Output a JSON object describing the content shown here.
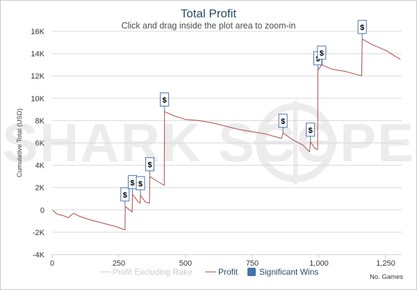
{
  "chart_data": {
    "type": "line",
    "title": "Total Profit",
    "subtitle": "Click and drag inside the plot area to zoom-in",
    "ylabel": "Cumulative Total (USD)",
    "xlabel": "No. Games",
    "xlim": [
      0,
      1310
    ],
    "ylim": [
      -4000,
      16000
    ],
    "x_ticks": [
      0,
      250,
      500,
      750,
      1000,
      1250
    ],
    "x_tick_labels": [
      "0",
      "250",
      "500",
      "750",
      "1,000",
      "1,250"
    ],
    "y_ticks": [
      -4000,
      -2000,
      0,
      2000,
      4000,
      6000,
      8000,
      10000,
      12000,
      14000,
      16000
    ],
    "y_tick_labels": [
      "-4K",
      "-2K",
      "0",
      "2K",
      "4K",
      "6K",
      "8K",
      "10K",
      "12K",
      "14K",
      "16K"
    ],
    "watermark": "SHARK SCOPE",
    "series": [
      {
        "name": "Profit Excluding Rake",
        "color": "#cccccc",
        "visible": false,
        "points": []
      },
      {
        "name": "Profit",
        "color": "#aa4643",
        "points": [
          [
            0,
            0
          ],
          [
            20,
            -400
          ],
          [
            40,
            -500
          ],
          [
            60,
            -700
          ],
          [
            80,
            -300
          ],
          [
            100,
            -550
          ],
          [
            130,
            -800
          ],
          [
            160,
            -1000
          ],
          [
            200,
            -1250
          ],
          [
            240,
            -1500
          ],
          [
            273,
            -1800
          ],
          [
            274,
            300
          ],
          [
            290,
            0
          ],
          [
            300,
            -200
          ],
          [
            301,
            1400
          ],
          [
            320,
            800
          ],
          [
            330,
            600
          ],
          [
            331,
            1300
          ],
          [
            350,
            700
          ],
          [
            365,
            600
          ],
          [
            366,
            3000
          ],
          [
            385,
            2700
          ],
          [
            420,
            2200
          ],
          [
            421,
            8800
          ],
          [
            460,
            8400
          ],
          [
            500,
            8100
          ],
          [
            550,
            8000
          ],
          [
            600,
            7800
          ],
          [
            650,
            7500
          ],
          [
            700,
            7200
          ],
          [
            750,
            7000
          ],
          [
            800,
            6800
          ],
          [
            860,
            6400
          ],
          [
            865,
            6900
          ],
          [
            900,
            6300
          ],
          [
            940,
            5800
          ],
          [
            965,
            5200
          ],
          [
            968,
            6100
          ],
          [
            985,
            5500
          ],
          [
            995,
            5400
          ],
          [
            996,
            12500
          ],
          [
            1010,
            13000
          ],
          [
            1050,
            12600
          ],
          [
            1100,
            12400
          ],
          [
            1160,
            12000
          ],
          [
            1162,
            15300
          ],
          [
            1200,
            14800
          ],
          [
            1250,
            14300
          ],
          [
            1290,
            13700
          ],
          [
            1305,
            13500
          ]
        ]
      },
      {
        "name": "Significant Wins",
        "color": "#4572a7",
        "type": "flags",
        "points": [
          [
            273,
            300
          ],
          [
            301,
            1400
          ],
          [
            331,
            1300
          ],
          [
            366,
            3000
          ],
          [
            421,
            8800
          ],
          [
            865,
            6900
          ],
          [
            968,
            6100
          ],
          [
            996,
            12500
          ],
          [
            1010,
            13000
          ],
          [
            1162,
            15300
          ]
        ],
        "flag_label": "$"
      }
    ],
    "legend": {
      "position": "bottom",
      "items": [
        "Profit Excluding Rake",
        "Profit",
        "Significant Wins"
      ]
    },
    "grid": true
  }
}
